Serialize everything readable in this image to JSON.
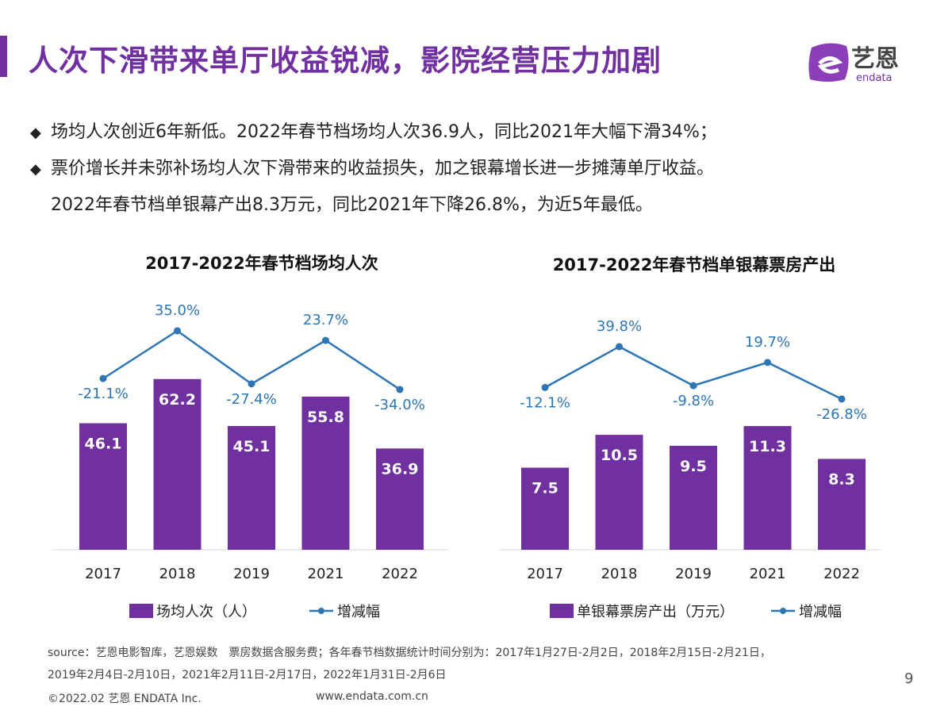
{
  "header": {
    "title": "人次下滑带来单厅收益锐减，影院经营压力加剧",
    "logo_text": "艺恩",
    "logo_sub": "endata"
  },
  "bullets": [
    "场均人次创近6年新低。2022年春节档场均人次36.9人，同比2021年大幅下滑34%；",
    "票价增长并未弥补场均人次下滑带来的收益损失，加之银幕增长进一步摊薄单厅收益。",
    "2022年春节档单银幕产出8.3万元，同比2021年下降26.8%，为近5年最低。"
  ],
  "bullet_symbol": "◆",
  "chart_data": [
    {
      "type": "bar+line",
      "title": "2017-2022年春节档场均人次",
      "categories": [
        "2017",
        "2018",
        "2019",
        "2021",
        "2022"
      ],
      "series": [
        {
          "name": "场均人次（人）",
          "type": "bar",
          "values": [
            46.1,
            62.2,
            45.1,
            55.8,
            36.9
          ],
          "color": "#7030a0"
        },
        {
          "name": "增减幅",
          "type": "line",
          "values": [
            -21.1,
            35.0,
            -27.4,
            23.7,
            -34.0
          ],
          "unit": "%",
          "color": "#2e75b6"
        }
      ],
      "legend": "bottom"
    },
    {
      "type": "bar+line",
      "title": "2017-2022年春节档单银幕票房产出",
      "categories": [
        "2017",
        "2018",
        "2019",
        "2021",
        "2022"
      ],
      "series": [
        {
          "name": "单银幕票房产出（万元）",
          "type": "bar",
          "values": [
            7.5,
            10.5,
            9.5,
            11.3,
            8.3
          ],
          "color": "#7030a0"
        },
        {
          "name": "增减幅",
          "type": "line",
          "values": [
            -12.1,
            39.8,
            -9.8,
            19.7,
            -26.8
          ],
          "unit": "%",
          "color": "#2e75b6"
        }
      ],
      "legend": "bottom"
    }
  ],
  "footer": {
    "source1": "source：艺恩电影智库，艺恩娱数　票房数据含服务费；各年春节档数据统计时间分别为：2017年1月27日-2月2日，2018年2月15日-2月21日，",
    "source2": "2019年2月4日-2月10日，2021年2月11日-2月17日，2022年1月31日-2月6日",
    "copyright": "©2022.02 艺恩 ENDATA Inc.",
    "website": "www.endata.com.cn",
    "page_number": "9"
  }
}
